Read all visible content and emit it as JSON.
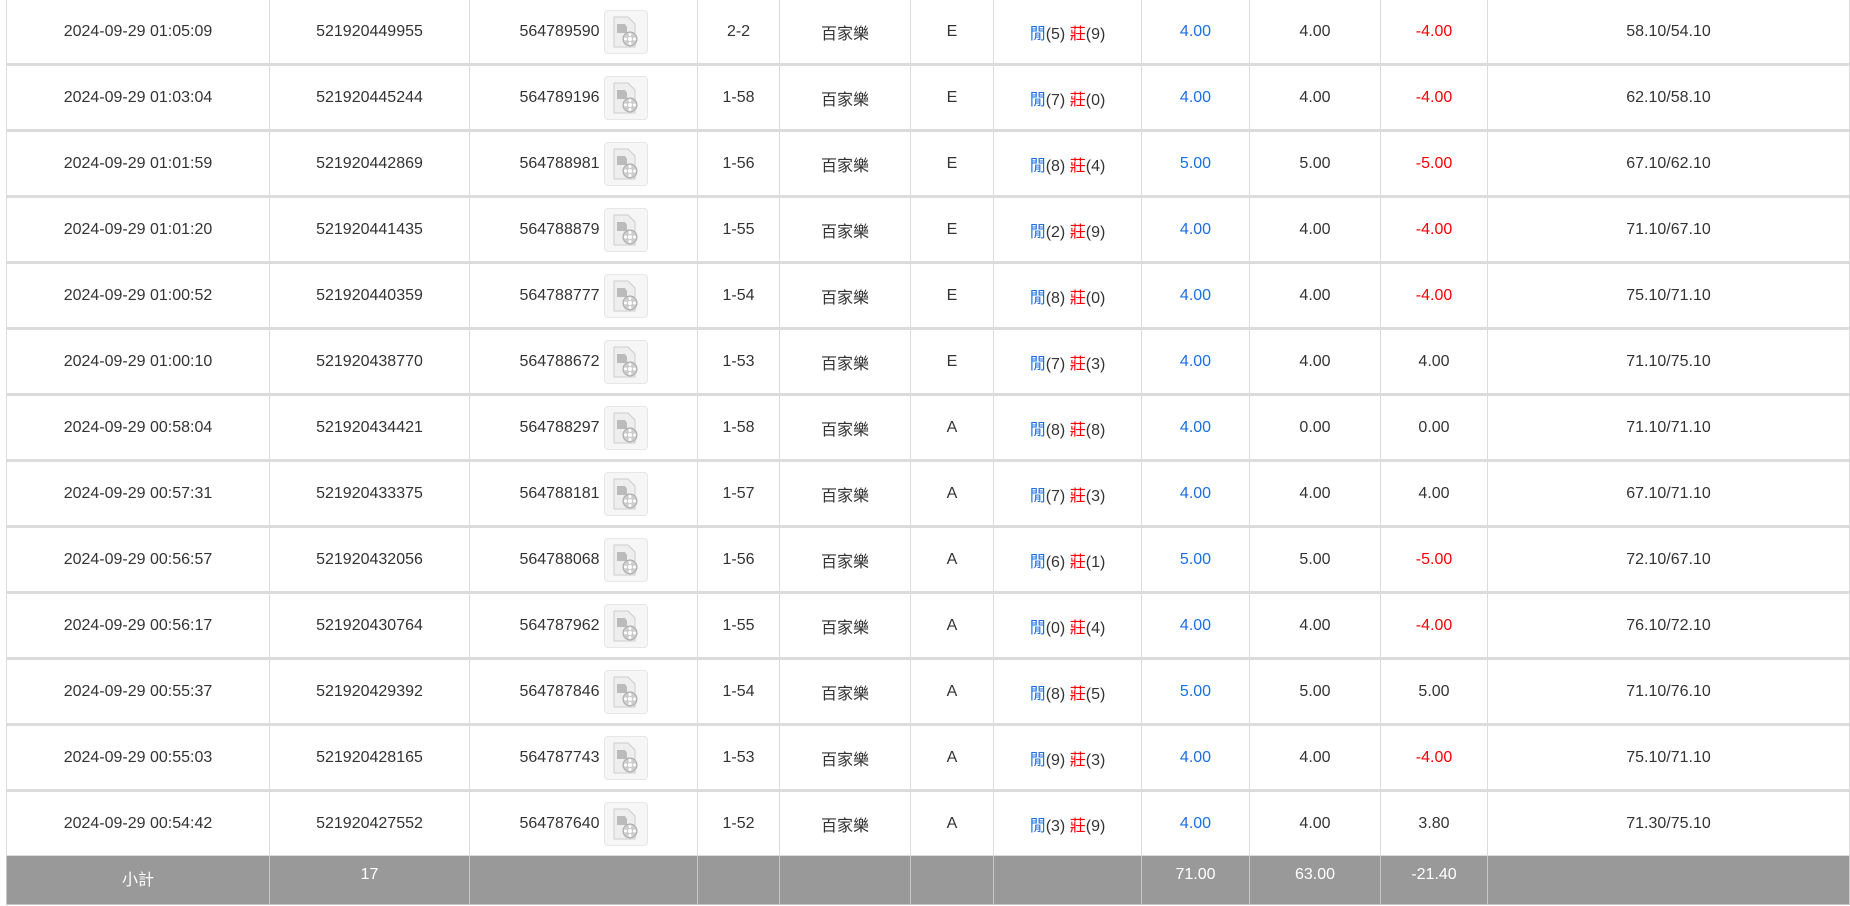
{
  "rows": [
    {
      "time": "2024-09-29 01:05:09",
      "bet_id": "521920449955",
      "round_id": "564789590",
      "shoe": "2-2",
      "game": "百家樂",
      "table": "E",
      "player_label": "閒",
      "player": "(5)",
      "banker_label": "莊",
      "banker": "(9)",
      "bet": "4.00",
      "valid": "4.00",
      "win": "-4.00",
      "balance": "58.10/54.10"
    },
    {
      "time": "2024-09-29 01:03:04",
      "bet_id": "521920445244",
      "round_id": "564789196",
      "shoe": "1-58",
      "game": "百家樂",
      "table": "E",
      "player_label": "閒",
      "player": "(7)",
      "banker_label": "莊",
      "banker": "(0)",
      "bet": "4.00",
      "valid": "4.00",
      "win": "-4.00",
      "balance": "62.10/58.10"
    },
    {
      "time": "2024-09-29 01:01:59",
      "bet_id": "521920442869",
      "round_id": "564788981",
      "shoe": "1-56",
      "game": "百家樂",
      "table": "E",
      "player_label": "閒",
      "player": "(8)",
      "banker_label": "莊",
      "banker": "(4)",
      "bet": "5.00",
      "valid": "5.00",
      "win": "-5.00",
      "balance": "67.10/62.10"
    },
    {
      "time": "2024-09-29 01:01:20",
      "bet_id": "521920441435",
      "round_id": "564788879",
      "shoe": "1-55",
      "game": "百家樂",
      "table": "E",
      "player_label": "閒",
      "player": "(2)",
      "banker_label": "莊",
      "banker": "(9)",
      "bet": "4.00",
      "valid": "4.00",
      "win": "-4.00",
      "balance": "71.10/67.10"
    },
    {
      "time": "2024-09-29 01:00:52",
      "bet_id": "521920440359",
      "round_id": "564788777",
      "shoe": "1-54",
      "game": "百家樂",
      "table": "E",
      "player_label": "閒",
      "player": "(8)",
      "banker_label": "莊",
      "banker": "(0)",
      "bet": "4.00",
      "valid": "4.00",
      "win": "-4.00",
      "balance": "75.10/71.10"
    },
    {
      "time": "2024-09-29 01:00:10",
      "bet_id": "521920438770",
      "round_id": "564788672",
      "shoe": "1-53",
      "game": "百家樂",
      "table": "E",
      "player_label": "閒",
      "player": "(7)",
      "banker_label": "莊",
      "banker": "(3)",
      "bet": "4.00",
      "valid": "4.00",
      "win": "4.00",
      "balance": "71.10/75.10"
    },
    {
      "time": "2024-09-29 00:58:04",
      "bet_id": "521920434421",
      "round_id": "564788297",
      "shoe": "1-58",
      "game": "百家樂",
      "table": "A",
      "player_label": "閒",
      "player": "(8)",
      "banker_label": "莊",
      "banker": "(8)",
      "bet": "4.00",
      "valid": "0.00",
      "win": "0.00",
      "balance": "71.10/71.10"
    },
    {
      "time": "2024-09-29 00:57:31",
      "bet_id": "521920433375",
      "round_id": "564788181",
      "shoe": "1-57",
      "game": "百家樂",
      "table": "A",
      "player_label": "閒",
      "player": "(7)",
      "banker_label": "莊",
      "banker": "(3)",
      "bet": "4.00",
      "valid": "4.00",
      "win": "4.00",
      "balance": "67.10/71.10"
    },
    {
      "time": "2024-09-29 00:56:57",
      "bet_id": "521920432056",
      "round_id": "564788068",
      "shoe": "1-56",
      "game": "百家樂",
      "table": "A",
      "player_label": "閒",
      "player": "(6)",
      "banker_label": "莊",
      "banker": "(1)",
      "bet": "5.00",
      "valid": "5.00",
      "win": "-5.00",
      "balance": "72.10/67.10"
    },
    {
      "time": "2024-09-29 00:56:17",
      "bet_id": "521920430764",
      "round_id": "564787962",
      "shoe": "1-55",
      "game": "百家樂",
      "table": "A",
      "player_label": "閒",
      "player": "(0)",
      "banker_label": "莊",
      "banker": "(4)",
      "bet": "4.00",
      "valid": "4.00",
      "win": "-4.00",
      "balance": "76.10/72.10"
    },
    {
      "time": "2024-09-29 00:55:37",
      "bet_id": "521920429392",
      "round_id": "564787846",
      "shoe": "1-54",
      "game": "百家樂",
      "table": "A",
      "player_label": "閒",
      "player": "(8)",
      "banker_label": "莊",
      "banker": "(5)",
      "bet": "5.00",
      "valid": "5.00",
      "win": "5.00",
      "balance": "71.10/76.10"
    },
    {
      "time": "2024-09-29 00:55:03",
      "bet_id": "521920428165",
      "round_id": "564787743",
      "shoe": "1-53",
      "game": "百家樂",
      "table": "A",
      "player_label": "閒",
      "player": "(9)",
      "banker_label": "莊",
      "banker": "(3)",
      "bet": "4.00",
      "valid": "4.00",
      "win": "-4.00",
      "balance": "75.10/71.10"
    },
    {
      "time": "2024-09-29 00:54:42",
      "bet_id": "521920427552",
      "round_id": "564787640",
      "shoe": "1-52",
      "game": "百家樂",
      "table": "A",
      "player_label": "閒",
      "player": "(3)",
      "banker_label": "莊",
      "banker": "(9)",
      "bet": "4.00",
      "valid": "4.00",
      "win": "3.80",
      "balance": "71.30/75.10"
    }
  ],
  "subtotal": {
    "label": "小計",
    "count": "17",
    "bet": "71.00",
    "valid": "63.00",
    "win": "-21.40"
  },
  "colors": {
    "player": "#1a6fe8",
    "banker": "#ff0000",
    "negative": "#ff0000",
    "subtotal_bg": "#999999"
  },
  "icons": {
    "replay": "video-replay-icon"
  }
}
